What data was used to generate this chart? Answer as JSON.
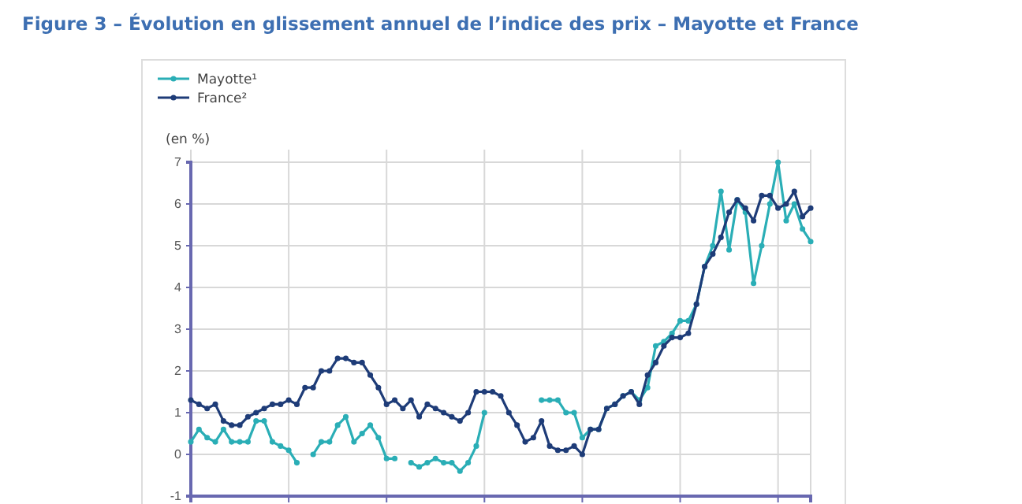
{
  "chart_data": {
    "type": "line",
    "title": "Figure 3 – Évolution en glissement annuel de l’indice des prix – Mayotte et France",
    "ylabel": "(en %)",
    "categories": [
      null,
      null,
      null,
      null,
      null,
      null,
      null,
      null,
      null,
      null,
      null,
      null,
      null,
      null,
      null,
      null,
      null,
      null,
      null,
      null,
      null,
      null,
      null,
      null,
      null,
      null,
      null,
      null,
      null,
      null,
      null,
      null,
      null,
      null,
      null,
      null,
      null,
      null,
      null,
      null,
      null,
      null,
      null,
      null,
      null,
      null,
      null,
      null,
      null,
      null,
      null,
      null,
      null,
      null,
      null,
      null,
      null,
      null,
      null,
      null,
      null,
      null,
      null,
      null,
      null,
      null,
      null,
      null,
      null,
      null,
      null,
      null,
      null,
      null,
      null,
      null,
      null
    ],
    "ylim": [
      -1,
      7
    ],
    "yticks": [
      -1,
      0,
      1,
      2,
      3,
      4,
      5,
      6,
      7
    ],
    "grid": true,
    "legend": "top left",
    "marker": "circle",
    "line_style": "solid",
    "series": [
      {
        "name": "Mayotte¹",
        "color": "#2aaeb6",
        "values": [
          0.3,
          0.6,
          0.4,
          0.3,
          0.6,
          0.3,
          0.3,
          0.3,
          0.8,
          0.8,
          0.3,
          0.2,
          0.1,
          -0.2,
          null,
          0.0,
          0.3,
          0.3,
          0.7,
          0.9,
          0.3,
          0.5,
          0.7,
          0.4,
          -0.1,
          -0.1,
          null,
          -0.2,
          -0.3,
          -0.2,
          -0.1,
          -0.2,
          -0.2,
          -0.4,
          -0.2,
          0.2,
          1.0,
          null,
          null,
          null,
          null,
          null,
          null,
          1.3,
          1.3,
          1.3,
          1.0,
          1.0,
          0.4,
          0.6,
          0.6,
          1.1,
          1.2,
          1.4,
          1.5,
          1.3,
          1.6,
          2.6,
          2.7,
          2.9,
          3.2,
          3.2,
          3.6,
          4.5,
          5.0,
          6.3,
          4.9,
          6.1,
          5.8,
          4.1,
          5.0,
          6.0,
          7.0,
          5.6,
          6.0,
          5.4,
          5.1
        ]
      },
      {
        "name": "France²",
        "color": "#1e3c78",
        "values": [
          1.3,
          1.2,
          1.1,
          1.2,
          0.8,
          0.7,
          0.7,
          0.9,
          1.0,
          1.1,
          1.2,
          1.2,
          1.3,
          1.2,
          1.6,
          1.6,
          2.0,
          2.0,
          2.3,
          2.3,
          2.2,
          2.2,
          1.9,
          1.6,
          1.2,
          1.3,
          1.1,
          1.3,
          0.9,
          1.2,
          1.1,
          1.0,
          0.9,
          0.8,
          1.0,
          1.5,
          1.5,
          1.5,
          1.4,
          1.0,
          0.7,
          0.3,
          0.4,
          0.8,
          0.2,
          0.1,
          0.1,
          0.2,
          0.0,
          0.6,
          0.6,
          1.1,
          1.2,
          1.4,
          1.5,
          1.2,
          1.9,
          2.2,
          2.6,
          2.8,
          2.8,
          2.9,
          3.6,
          4.5,
          4.8,
          5.2,
          5.8,
          6.1,
          5.9,
          5.6,
          6.2,
          6.2,
          5.9,
          6.0,
          6.3,
          5.7,
          5.9
        ]
      }
    ]
  }
}
